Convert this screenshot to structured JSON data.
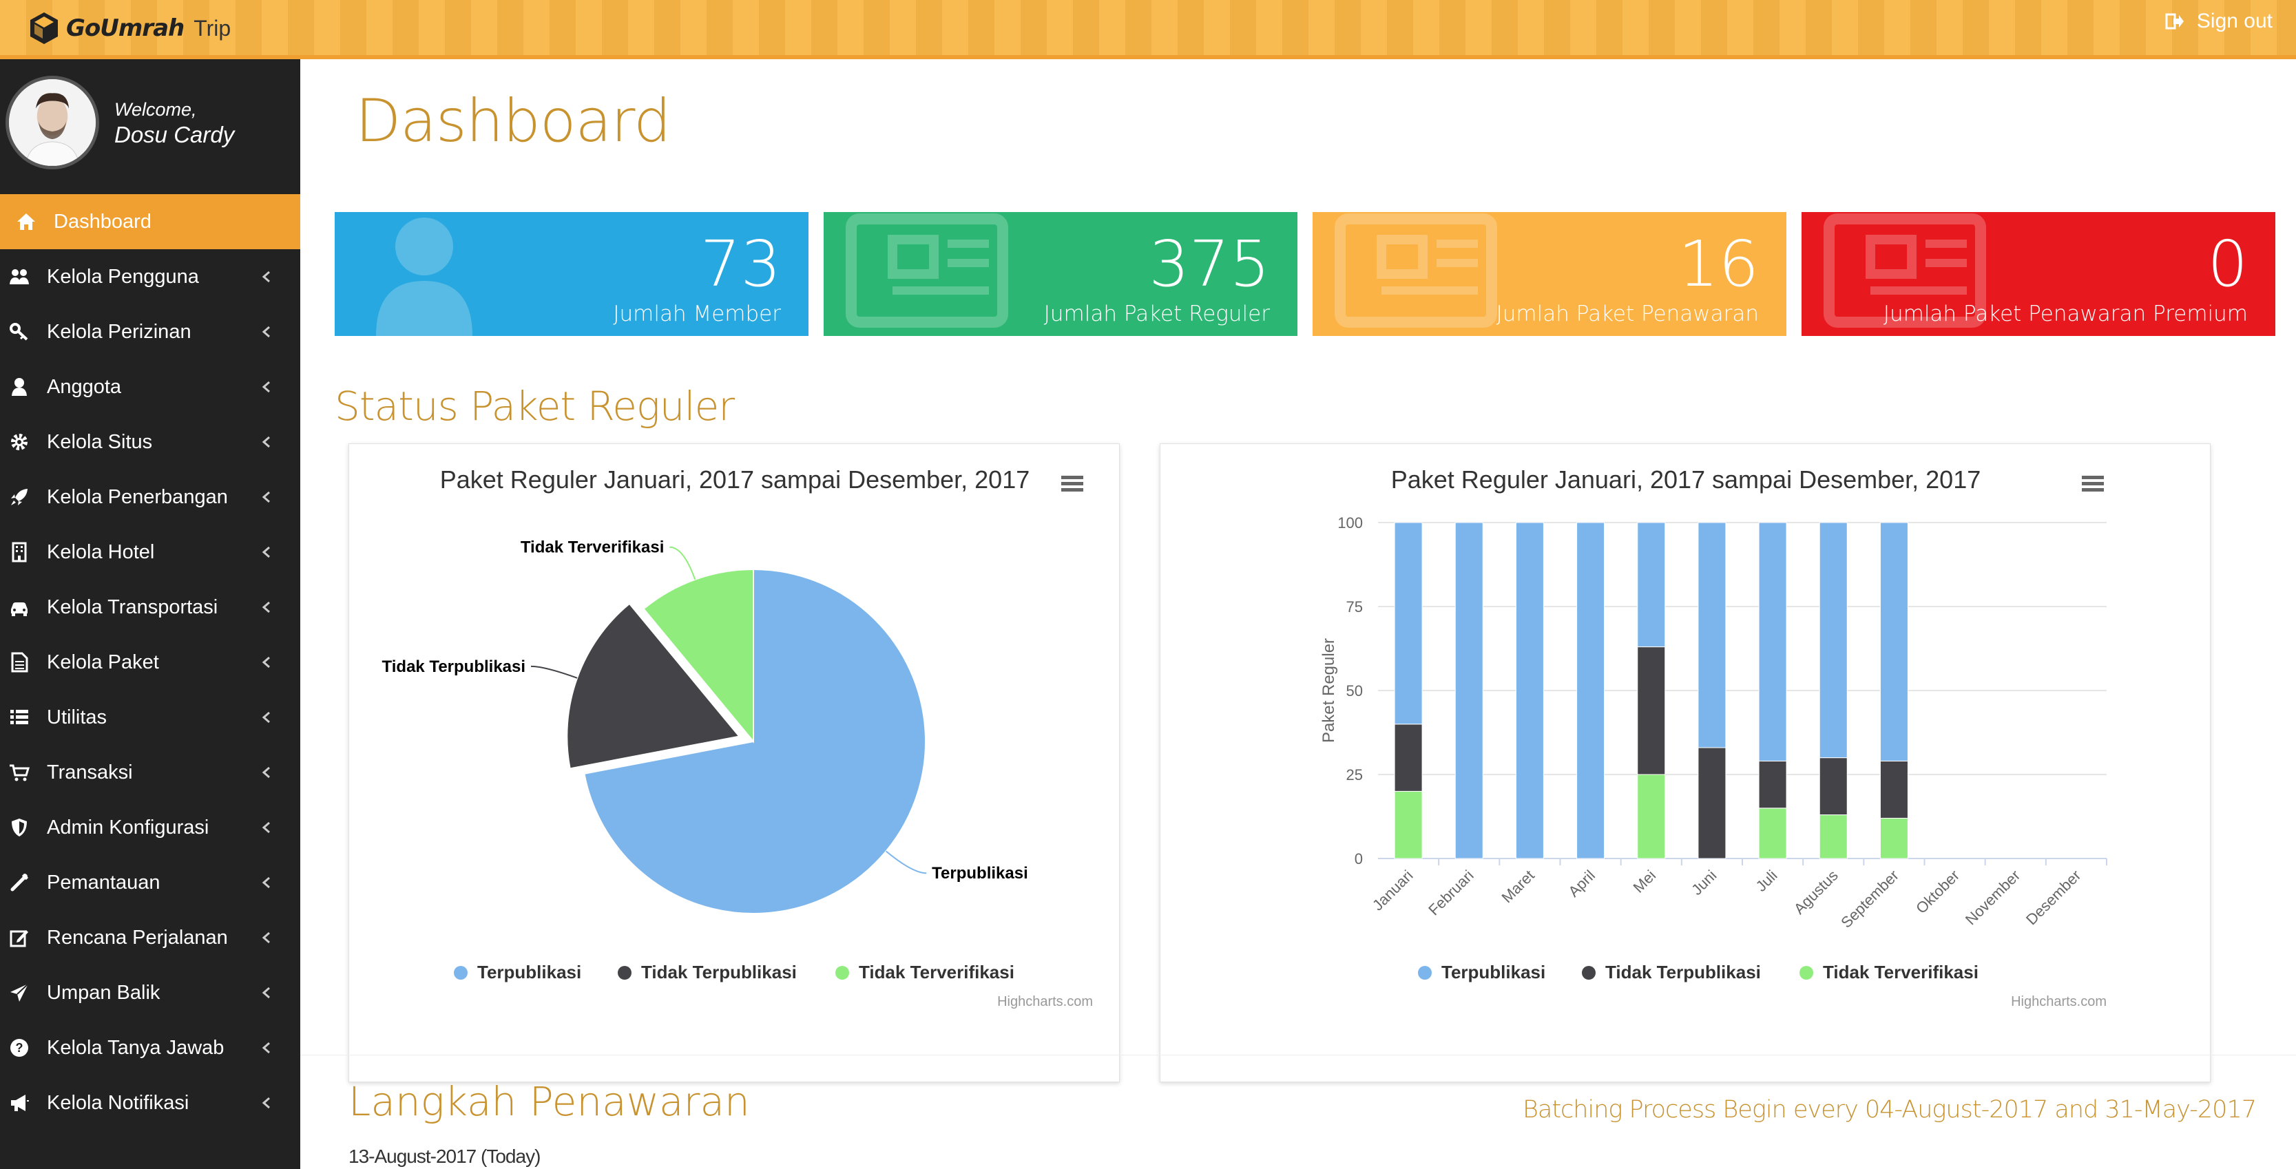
{
  "app": {
    "brand": "GoUmrah",
    "brand_suffix": "Trip",
    "sign_out": "Sign out"
  },
  "user": {
    "welcome": "Welcome,",
    "name": "Dosu Cardy"
  },
  "sidebar": {
    "items": [
      {
        "label": "Dashboard",
        "icon": "home-icon",
        "active": true
      },
      {
        "label": "Kelola Pengguna",
        "icon": "users-icon"
      },
      {
        "label": "Kelola Perizinan",
        "icon": "key-icon"
      },
      {
        "label": "Anggota",
        "icon": "user-icon"
      },
      {
        "label": "Kelola Situs",
        "icon": "gear-icon"
      },
      {
        "label": "Kelola Penerbangan",
        "icon": "rocket-icon"
      },
      {
        "label": "Kelola Hotel",
        "icon": "building-icon"
      },
      {
        "label": "Kelola Transportasi",
        "icon": "car-icon"
      },
      {
        "label": "Kelola Paket",
        "icon": "file-icon"
      },
      {
        "label": "Utilitas",
        "icon": "list-icon"
      },
      {
        "label": "Transaksi",
        "icon": "cart-icon"
      },
      {
        "label": "Admin Konfigurasi",
        "icon": "shield-icon"
      },
      {
        "label": "Pemantauan",
        "icon": "wrench-icon"
      },
      {
        "label": "Rencana Perjalanan",
        "icon": "edit-icon"
      },
      {
        "label": "Umpan Balik",
        "icon": "send-icon"
      },
      {
        "label": "Kelola Tanya Jawab",
        "icon": "question-icon"
      },
      {
        "label": "Kelola Notifikasi",
        "icon": "bullhorn-icon"
      }
    ]
  },
  "main": {
    "title": "Dashboard",
    "tiles": [
      {
        "value": "73",
        "label": "Jumlah Member",
        "color": "#27a8e0",
        "icon": "user-icon"
      },
      {
        "value": "375",
        "label": "Jumlah Paket Reguler",
        "color": "#2bb673",
        "icon": "newspaper-icon"
      },
      {
        "value": "16",
        "label": "Jumlah Paket Penawaran",
        "color": "#fbb345",
        "icon": "newspaper-icon"
      },
      {
        "value": "0",
        "label": "Jumlah Paket Penawaran Premium",
        "color": "#e8191e",
        "icon": "newspaper-icon"
      }
    ],
    "section_title": "Status Paket Reguler",
    "steps_title": "Langkah Penawaran",
    "steps_date": "13-August-2017 (Today)",
    "batch_text": "Batching Process Begin every 04-August-2017 and 31-May-2017"
  },
  "chart_data": [
    {
      "type": "pie",
      "title": "Paket Reguler Januari, 2017 sampai Desember, 2017",
      "credits": "Highcharts.com",
      "legend": "bottom",
      "slices": [
        {
          "name": "Terpublikasi",
          "value": 72,
          "color": "#7cb5ec"
        },
        {
          "name": "Tidak Terpublikasi",
          "value": 17,
          "color": "#434348",
          "sliced": true
        },
        {
          "name": "Tidak Terverifikasi",
          "value": 11,
          "color": "#90ed7d"
        }
      ]
    },
    {
      "type": "bar",
      "stacked": true,
      "percent": true,
      "title": "Paket Reguler Januari, 2017 sampai Desember, 2017",
      "credits": "Highcharts.com",
      "ylabel": "Paket Reguler",
      "ylim": [
        0,
        100
      ],
      "yticks": [
        0,
        25,
        50,
        75,
        100
      ],
      "grid": true,
      "legend": "bottom",
      "categories": [
        "Januari",
        "Februari",
        "Maret",
        "April",
        "Mei",
        "Juni",
        "Juli",
        "Agustus",
        "September",
        "Oktober",
        "November",
        "Desember"
      ],
      "series": [
        {
          "name": "Terpublikasi",
          "color": "#7cb5ec",
          "values": [
            60,
            100,
            100,
            100,
            37,
            67,
            71,
            70,
            71,
            0,
            0,
            0
          ]
        },
        {
          "name": "Tidak Terpublikasi",
          "color": "#434348",
          "values": [
            20,
            0,
            0,
            0,
            38,
            33,
            14,
            17,
            17,
            0,
            0,
            0
          ]
        },
        {
          "name": "Tidak Terverifikasi",
          "color": "#90ed7d",
          "values": [
            20,
            0,
            0,
            0,
            25,
            0,
            15,
            13,
            12,
            0,
            0,
            0
          ]
        }
      ]
    }
  ]
}
